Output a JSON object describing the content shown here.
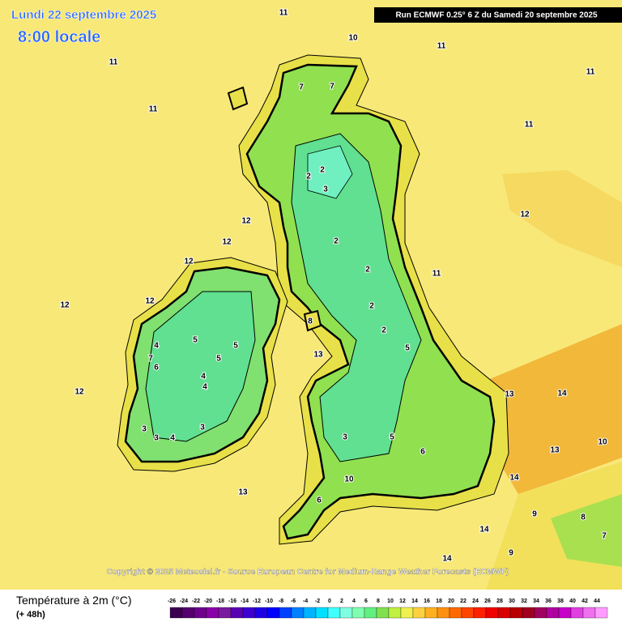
{
  "header": {
    "date": "Lundi 22 septembre 2025",
    "time": "8:00 locale",
    "run": "Run ECMWF 0.25° 6 Z du Samedi 20 septembre 2025"
  },
  "map": {
    "copyright": "Copyright © 2025 Meteociel.fr - Source European Centre for Medium-Range Weather Forecasts (ECMWF)",
    "contour_labels": [
      11,
      11,
      11,
      11,
      11,
      11,
      10,
      12,
      12,
      12,
      12,
      12,
      12,
      12,
      11,
      13,
      13,
      14,
      10,
      13,
      14,
      13,
      14,
      14,
      10,
      7,
      7,
      2,
      3,
      2,
      2,
      2,
      2,
      2,
      5,
      6,
      3,
      5,
      6,
      4,
      5,
      5,
      5,
      4,
      4,
      3,
      3,
      4,
      3,
      6,
      7,
      8,
      9,
      8,
      7,
      9
    ]
  },
  "legend": {
    "title": "Température à 2m (°C)",
    "lead": "(+ 48h)",
    "ticks": [
      -26,
      -24,
      -22,
      -20,
      -18,
      -16,
      -14,
      -12,
      -10,
      -8,
      -6,
      -4,
      -2,
      0,
      2,
      4,
      6,
      8,
      10,
      12,
      14,
      16,
      18,
      20,
      22,
      24,
      26,
      28,
      30,
      32,
      34,
      36,
      38,
      40,
      42,
      44
    ],
    "colors": [
      "#3c0050",
      "#55006e",
      "#6e008c",
      "#8a00a8",
      "#7a1a9e",
      "#5a00b4",
      "#3c00d2",
      "#1e00e6",
      "#0000ff",
      "#0040ff",
      "#0080ff",
      "#00b4ff",
      "#00e0ff",
      "#40ffff",
      "#80ffe0",
      "#80ffb0",
      "#60f080",
      "#80e050",
      "#c0f040",
      "#f0f050",
      "#ffd040",
      "#ffb020",
      "#ff9010",
      "#ff6a00",
      "#ff4400",
      "#ff2000",
      "#f00000",
      "#d80000",
      "#b80000",
      "#a00020",
      "#a00060",
      "#b000a0",
      "#c800c8",
      "#e040e0",
      "#f070f0",
      "#ff9cff"
    ]
  }
}
